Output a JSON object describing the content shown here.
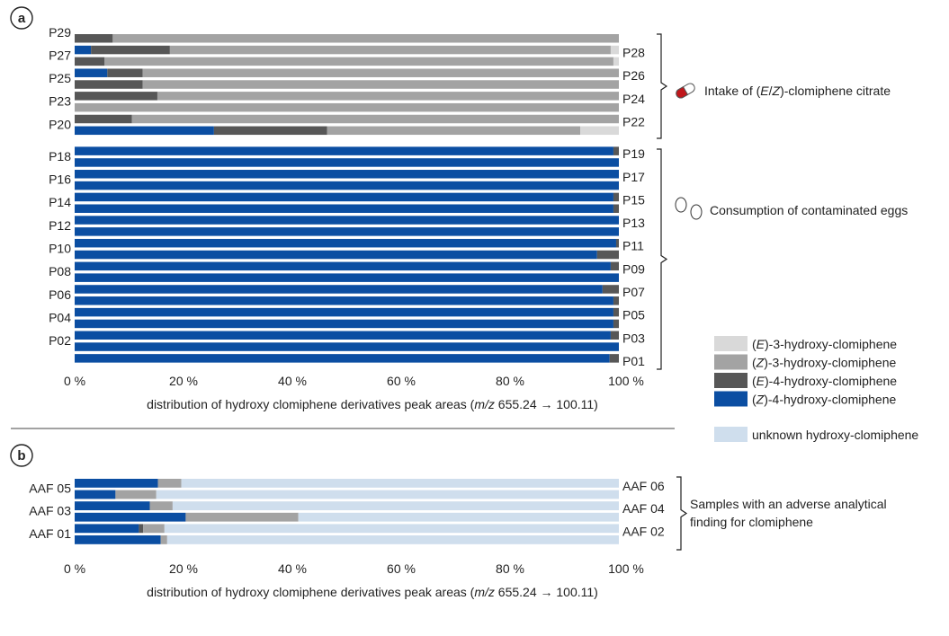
{
  "colors": {
    "e3": "#d9d9d9",
    "z3": "#a3a3a3",
    "e4": "#575757",
    "z4": "#0b4ea2",
    "unknown": "#cfdeed"
  },
  "chart_data": [
    {
      "panel": "a",
      "type": "bar",
      "orientation": "horizontal",
      "stacked": true,
      "xlabel_pre": "distribution of hydroxy clomiphene derivatives peak areas (",
      "xlabel_italic": "m/z",
      "xlabel_post": " 655.24 → 100.11)",
      "xlim": [
        0,
        100
      ],
      "ticks": [
        "0 %",
        "20 %",
        "40 %",
        "60 %",
        "80 %",
        "100 %"
      ],
      "group_labels": [
        {
          "text": "Intake of (E/Z)-clomiphene citrate",
          "parts": [
            [
              "Intake of (",
              false
            ],
            [
              "E",
              true
            ],
            [
              "/",
              false
            ],
            [
              "Z",
              true
            ],
            [
              ")-clomiphene citrate",
              false
            ]
          ],
          "icon": "pill-icon"
        },
        {
          "text": "Consumption of contaminated eggs",
          "parts": [
            [
              "Consumption of contaminated eggs",
              false
            ]
          ],
          "icon": "eggs-icon"
        }
      ],
      "categories": [
        "P29",
        "P28",
        "P27",
        "P26",
        "P25",
        "P24",
        "P23",
        "P22",
        "P20",
        "P19",
        "P18",
        "P17",
        "P16",
        "P15",
        "P14",
        "P13",
        "P12",
        "P11",
        "P10",
        "P09",
        "P08",
        "P07",
        "P06",
        "P05",
        "P04",
        "P03",
        "P02",
        "P01"
      ],
      "series": [
        {
          "name": "(Z)-4-hydroxy-clomiphene",
          "key": "z4",
          "values": [
            0,
            3,
            0,
            6,
            0,
            0,
            0,
            0,
            25.6,
            99,
            100,
            100,
            100,
            99,
            99,
            100,
            100,
            99.5,
            96,
            98.5,
            100,
            97,
            99,
            99,
            99,
            98.5,
            100,
            98.3
          ]
        },
        {
          "name": "(E)-4-hydroxy-clomiphene",
          "key": "e4",
          "values": [
            7,
            14.5,
            5.5,
            6.5,
            12.5,
            15.2,
            0,
            10.5,
            20.8,
            1,
            0,
            0,
            0,
            1,
            1,
            0,
            0,
            0.5,
            4,
            1.5,
            0,
            3,
            1,
            1,
            1,
            1.5,
            0,
            1.7
          ]
        },
        {
          "name": "(Z)-3-hydroxy-clomiphene",
          "key": "z3",
          "values": [
            93,
            81,
            93.5,
            87.5,
            87.5,
            84.8,
            100,
            89.5,
            46.5,
            0,
            0,
            0,
            0,
            0,
            0,
            0,
            0,
            0,
            0,
            0,
            0,
            0,
            0,
            0,
            0,
            0,
            0,
            0
          ]
        },
        {
          "name": "(E)-3-hydroxy-clomiphene",
          "key": "e3",
          "values": [
            0,
            1.5,
            1,
            0,
            0,
            0,
            0,
            0,
            7.1,
            0,
            0,
            0,
            0,
            0,
            0,
            0,
            0,
            0,
            0,
            0,
            0,
            0,
            0,
            0,
            0,
            0,
            0,
            0
          ]
        }
      ]
    },
    {
      "panel": "b",
      "type": "bar",
      "orientation": "horizontal",
      "stacked": true,
      "xlabel_pre": "distribution of hydroxy clomiphene derivatives peak areas (",
      "xlabel_italic": "m/z",
      "xlabel_post": " 655.24 → 100.11)",
      "xlim": [
        0,
        100
      ],
      "ticks": [
        "0 %",
        "20 %",
        "40 %",
        "60 %",
        "80 %",
        "100 %"
      ],
      "group_labels": [
        {
          "text": "Samples with an adverse analytical finding for clomiphene",
          "lines": [
            "Samples with an adverse analytical",
            "finding for clomiphene"
          ]
        }
      ],
      "categories": [
        "AAF 06",
        "AAF 05",
        "AAF 04",
        "AAF 03",
        "AAF 02",
        "AAF 01"
      ],
      "series": [
        {
          "name": "(Z)-4-hydroxy-clomiphene",
          "key": "z4",
          "values": [
            15.3,
            7.5,
            13.8,
            20.4,
            11.8,
            15.8
          ]
        },
        {
          "name": "(E)-4-hydroxy-clomiphene",
          "key": "e4",
          "values": [
            0,
            0,
            0,
            0,
            0.8,
            0
          ]
        },
        {
          "name": "(Z)-3-hydroxy-clomiphene",
          "key": "z3",
          "values": [
            4.3,
            7.5,
            4.2,
            20.7,
            3.9,
            1.2
          ]
        },
        {
          "name": "unknown hydroxy-clomiphene",
          "key": "unknown",
          "values": [
            80.4,
            85,
            82,
            58.9,
            83.5,
            83
          ]
        }
      ]
    }
  ],
  "legend": [
    {
      "key": "e3",
      "parts": [
        [
          "(",
          false
        ],
        [
          "E",
          true
        ],
        [
          ")-3-hydroxy-clomiphene",
          false
        ]
      ]
    },
    {
      "key": "z3",
      "parts": [
        [
          "(",
          false
        ],
        [
          "Z",
          true
        ],
        [
          ")-3-hydroxy-clomiphene",
          false
        ]
      ]
    },
    {
      "key": "e4",
      "parts": [
        [
          "(",
          false
        ],
        [
          "E",
          true
        ],
        [
          ")-4-hydroxy-clomiphene",
          false
        ]
      ]
    },
    {
      "key": "z4",
      "parts": [
        [
          "(",
          false
        ],
        [
          "Z",
          true
        ],
        [
          ")-4-hydroxy-clomiphene",
          false
        ]
      ]
    },
    {
      "key": "unknown",
      "parts": [
        [
          "unknown hydroxy-clomiphene",
          false
        ]
      ]
    }
  ]
}
